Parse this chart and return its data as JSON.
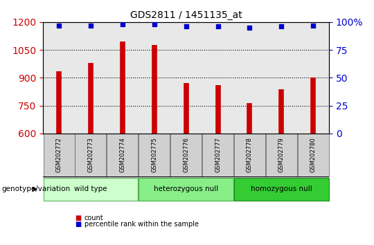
{
  "title": "GDS2811 / 1451135_at",
  "samples": [
    "GSM202772",
    "GSM202773",
    "GSM202774",
    "GSM202775",
    "GSM202776",
    "GSM202777",
    "GSM202778",
    "GSM202779",
    "GSM202780"
  ],
  "counts": [
    935,
    980,
    1095,
    1075,
    870,
    860,
    765,
    840,
    900
  ],
  "percentile_ranks": [
    97,
    97,
    98,
    98,
    96,
    96,
    95,
    96,
    97
  ],
  "ylim_left": [
    600,
    1200
  ],
  "ylim_right": [
    0,
    100
  ],
  "yticks_left": [
    600,
    750,
    900,
    1050,
    1200
  ],
  "yticks_right": [
    0,
    25,
    50,
    75,
    100
  ],
  "bar_color": "#cc0000",
  "dot_color": "#0000cc",
  "group_label": "genotype/variation",
  "legend_count_label": "count",
  "legend_pct_label": "percentile rank within the sample",
  "plot_bg_color": "#e8e8e8",
  "title_color": "#000000",
  "left_tick_color": "#cc0000",
  "right_tick_color": "#0000cc",
  "group_configs": [
    {
      "indices": [
        0,
        1,
        2
      ],
      "label": "wild type",
      "color": "#ccffcc",
      "edge": "#66aa66"
    },
    {
      "indices": [
        3,
        4,
        5
      ],
      "label": "heterozygous null",
      "color": "#88ee88",
      "edge": "#44aa44"
    },
    {
      "indices": [
        6,
        7,
        8
      ],
      "label": "homozygous null",
      "color": "#33cc33",
      "edge": "#228822"
    }
  ]
}
